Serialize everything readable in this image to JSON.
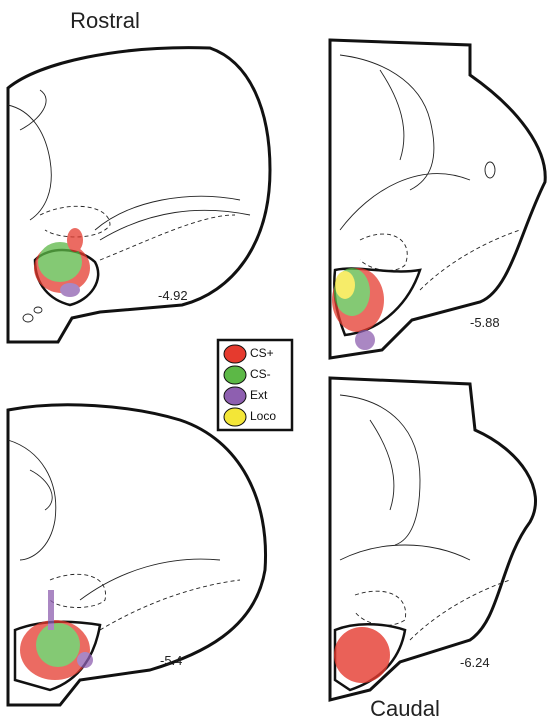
{
  "labels": {
    "top": "Rostral",
    "bottom": "Caudal"
  },
  "sections": [
    {
      "label": "-4.92"
    },
    {
      "label": "-5.88"
    },
    {
      "label": "-5.4"
    },
    {
      "label": "-6.24"
    }
  ],
  "legend": [
    {
      "name": "CS+",
      "color": "#e53a2e"
    },
    {
      "name": "CS-",
      "color": "#5cb846"
    },
    {
      "name": "Ext",
      "color": "#8e5fb0"
    },
    {
      "name": "Loco",
      "color": "#f3e637"
    }
  ]
}
